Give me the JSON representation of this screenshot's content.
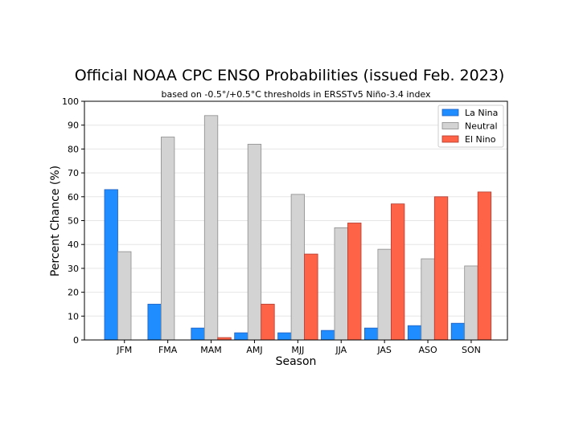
{
  "chart_data": {
    "type": "bar",
    "title": "Official NOAA CPC ENSO Probabilities (issued Feb. 2023)",
    "subtitle": "based on -0.5°/+0.5°C thresholds in ERSSTv5 Niño-3.4 index",
    "xlabel": "Season",
    "ylabel": "Percent Chance (%)",
    "ylim": [
      0,
      100
    ],
    "yticks": [
      "0",
      "10",
      "20",
      "30",
      "40",
      "50",
      "60",
      "70",
      "80",
      "90",
      "100"
    ],
    "grid": true,
    "legend_position": "top-right",
    "categories": [
      "JFM",
      "FMA",
      "MAM",
      "AMJ",
      "MJJ",
      "JJA",
      "JAS",
      "ASO",
      "SON"
    ],
    "series": [
      {
        "name": "La Nina",
        "color": "#1f8cff",
        "edge": "#1f5fbf",
        "values": [
          63,
          15,
          5,
          3,
          3,
          4,
          5,
          6,
          7
        ]
      },
      {
        "name": "Neutral",
        "color": "#d3d3d3",
        "edge": "#8c8c8c",
        "values": [
          37,
          85,
          94,
          82,
          61,
          47,
          38,
          34,
          31
        ]
      },
      {
        "name": "El Nino",
        "color": "#ff6347",
        "edge": "#b03a2e",
        "values": [
          0,
          0,
          1,
          15,
          36,
          49,
          57,
          60,
          62
        ]
      }
    ]
  }
}
